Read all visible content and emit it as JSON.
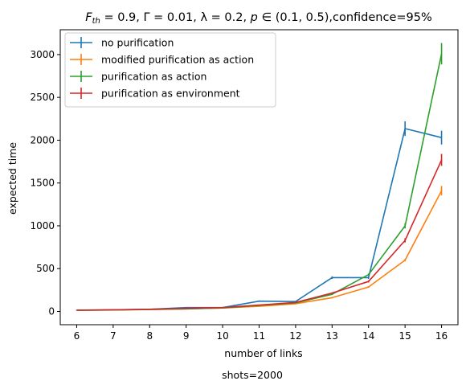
{
  "chart_data": {
    "type": "line",
    "title": "F_th = 0.9, Γ = 0.01, λ = 0.2, p ∈ (0.1, 0.5),confidence=95%",
    "title_parts": {
      "f_sym": "F",
      "f_sub": "th",
      "rest": " = 0.9, Γ = 0.01, λ = 0.2, ",
      "p_sym": "p",
      "range": " ∈ (0.1, 0.5),confidence=95%"
    },
    "xlabel": "number of links",
    "ylabel": "expected time",
    "footer": "shots=2000",
    "x": [
      6,
      7,
      8,
      9,
      10,
      11,
      12,
      13,
      14,
      15,
      16
    ],
    "xlim": [
      5.55,
      16.45
    ],
    "ylim": [
      -155,
      3290
    ],
    "yticks": [
      0,
      500,
      1000,
      1500,
      2000,
      2500,
      3000
    ],
    "grid": false,
    "legend_position": "top-left",
    "series": [
      {
        "name": "no purification",
        "color": "#1f77b4",
        "values": [
          15,
          20,
          25,
          45,
          45,
          120,
          115,
          395,
          395,
          2135,
          2030
        ],
        "errors": [
          3,
          3,
          3,
          5,
          5,
          8,
          8,
          15,
          15,
          85,
          80
        ]
      },
      {
        "name": "modified purification as action",
        "color": "#ff7f0e",
        "values": [
          15,
          18,
          22,
          30,
          40,
          60,
          90,
          160,
          285,
          600,
          1410
        ],
        "errors": [
          2,
          2,
          2,
          3,
          3,
          4,
          5,
          8,
          10,
          15,
          55
        ]
      },
      {
        "name": "purification as action",
        "color": "#2ca02c",
        "values": [
          14,
          17,
          22,
          30,
          40,
          70,
          100,
          200,
          430,
          1000,
          3010
        ],
        "errors": [
          2,
          2,
          2,
          3,
          3,
          4,
          5,
          8,
          12,
          30,
          125
        ]
      },
      {
        "name": "purification as environment",
        "color": "#d62728",
        "values": [
          14,
          18,
          25,
          35,
          45,
          75,
          105,
          215,
          350,
          830,
          1770
        ],
        "errors": [
          2,
          2,
          2,
          3,
          3,
          4,
          5,
          8,
          12,
          25,
          70
        ]
      }
    ]
  }
}
